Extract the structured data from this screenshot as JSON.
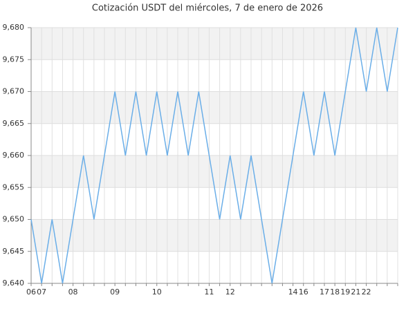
{
  "chart_data": {
    "type": "line",
    "title": "Cotización USDT del miércoles, 7 de enero de 2026",
    "categories": [
      "06",
      "07",
      null,
      null,
      "08",
      null,
      null,
      null,
      "09",
      null,
      null,
      null,
      "10",
      null,
      null,
      null,
      null,
      "11",
      null,
      "12",
      null,
      null,
      null,
      null,
      null,
      "14",
      "16",
      null,
      "17",
      "18",
      "19",
      "21",
      "22",
      null,
      null,
      null
    ],
    "series": [
      {
        "name": "USDT",
        "color": "#6aaee8",
        "values": [
          9.65,
          9.64,
          9.65,
          9.64,
          9.65,
          9.66,
          9.65,
          9.66,
          9.67,
          9.66,
          9.67,
          9.66,
          9.67,
          9.66,
          9.67,
          9.66,
          9.67,
          9.66,
          9.65,
          9.66,
          9.65,
          9.66,
          9.65,
          9.64,
          9.65,
          9.66,
          9.67,
          9.66,
          9.67,
          9.66,
          9.67,
          9.68,
          9.67,
          9.68,
          9.67,
          9.68
        ]
      }
    ],
    "ylim": [
      9.64,
      9.68
    ],
    "yticks": [
      {
        "value": 9.64,
        "label": "9,640"
      },
      {
        "value": 9.645,
        "label": "9,645"
      },
      {
        "value": 9.65,
        "label": "9,650"
      },
      {
        "value": 9.655,
        "label": "9,655"
      },
      {
        "value": 9.66,
        "label": "9,660"
      },
      {
        "value": 9.665,
        "label": "9,665"
      },
      {
        "value": 9.67,
        "label": "9,670"
      },
      {
        "value": 9.675,
        "label": "9,675"
      },
      {
        "value": 9.68,
        "label": "9,680"
      }
    ],
    "grid": true
  }
}
